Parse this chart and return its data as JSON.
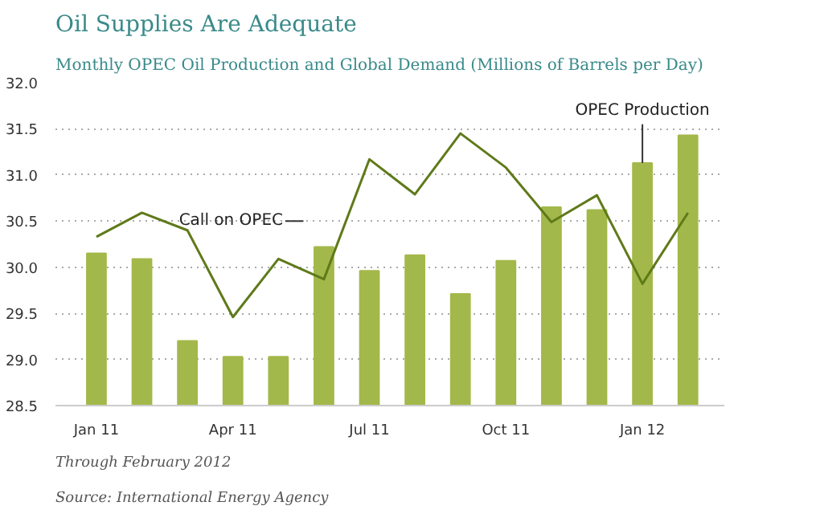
{
  "chart_data": {
    "type": "bar",
    "title": "Oil Supplies Are Adequate",
    "subtitle": "Monthly OPEC Oil Production and Global Demand (Millions of Barrels per Day)",
    "categories": [
      "Jan 11",
      null,
      null,
      "Apr 11",
      null,
      null,
      "Jul 11",
      null,
      null,
      "Oct 11",
      null,
      null,
      "Jan 12",
      null
    ],
    "series": [
      {
        "name": "OPEC Production",
        "color": "#a3b84a",
        "values": [
          30.15,
          30.09,
          29.2,
          29.03,
          29.03,
          30.22,
          29.96,
          30.13,
          29.71,
          30.07,
          30.65,
          30.62,
          31.13,
          31.43
        ]
      },
      {
        "name": "Call on OPEC",
        "type": "line",
        "color": "#5f7a1a",
        "values": [
          30.33,
          30.59,
          30.4,
          29.46,
          30.09,
          29.87,
          31.17,
          30.79,
          31.45,
          31.08,
          30.49,
          30.78,
          29.82,
          30.59
        ]
      }
    ],
    "ylim": [
      28.5,
      32.0
    ],
    "yticks": [
      {
        "value": 28.5,
        "label": "28.5"
      },
      {
        "value": 29.0,
        "label": "29.0"
      },
      {
        "value": 29.5,
        "label": "29.5"
      },
      {
        "value": 30.0,
        "label": "30.0"
      },
      {
        "value": 30.5,
        "label": "30.5"
      },
      {
        "value": 31.0,
        "label": "31.0"
      },
      {
        "value": 31.5,
        "label": "31.5"
      },
      {
        "value": 32.0,
        "label": "32.0"
      }
    ],
    "grid": "y",
    "annotations": [
      "Through February 2012",
      "Source:  International Energy Agency"
    ]
  }
}
